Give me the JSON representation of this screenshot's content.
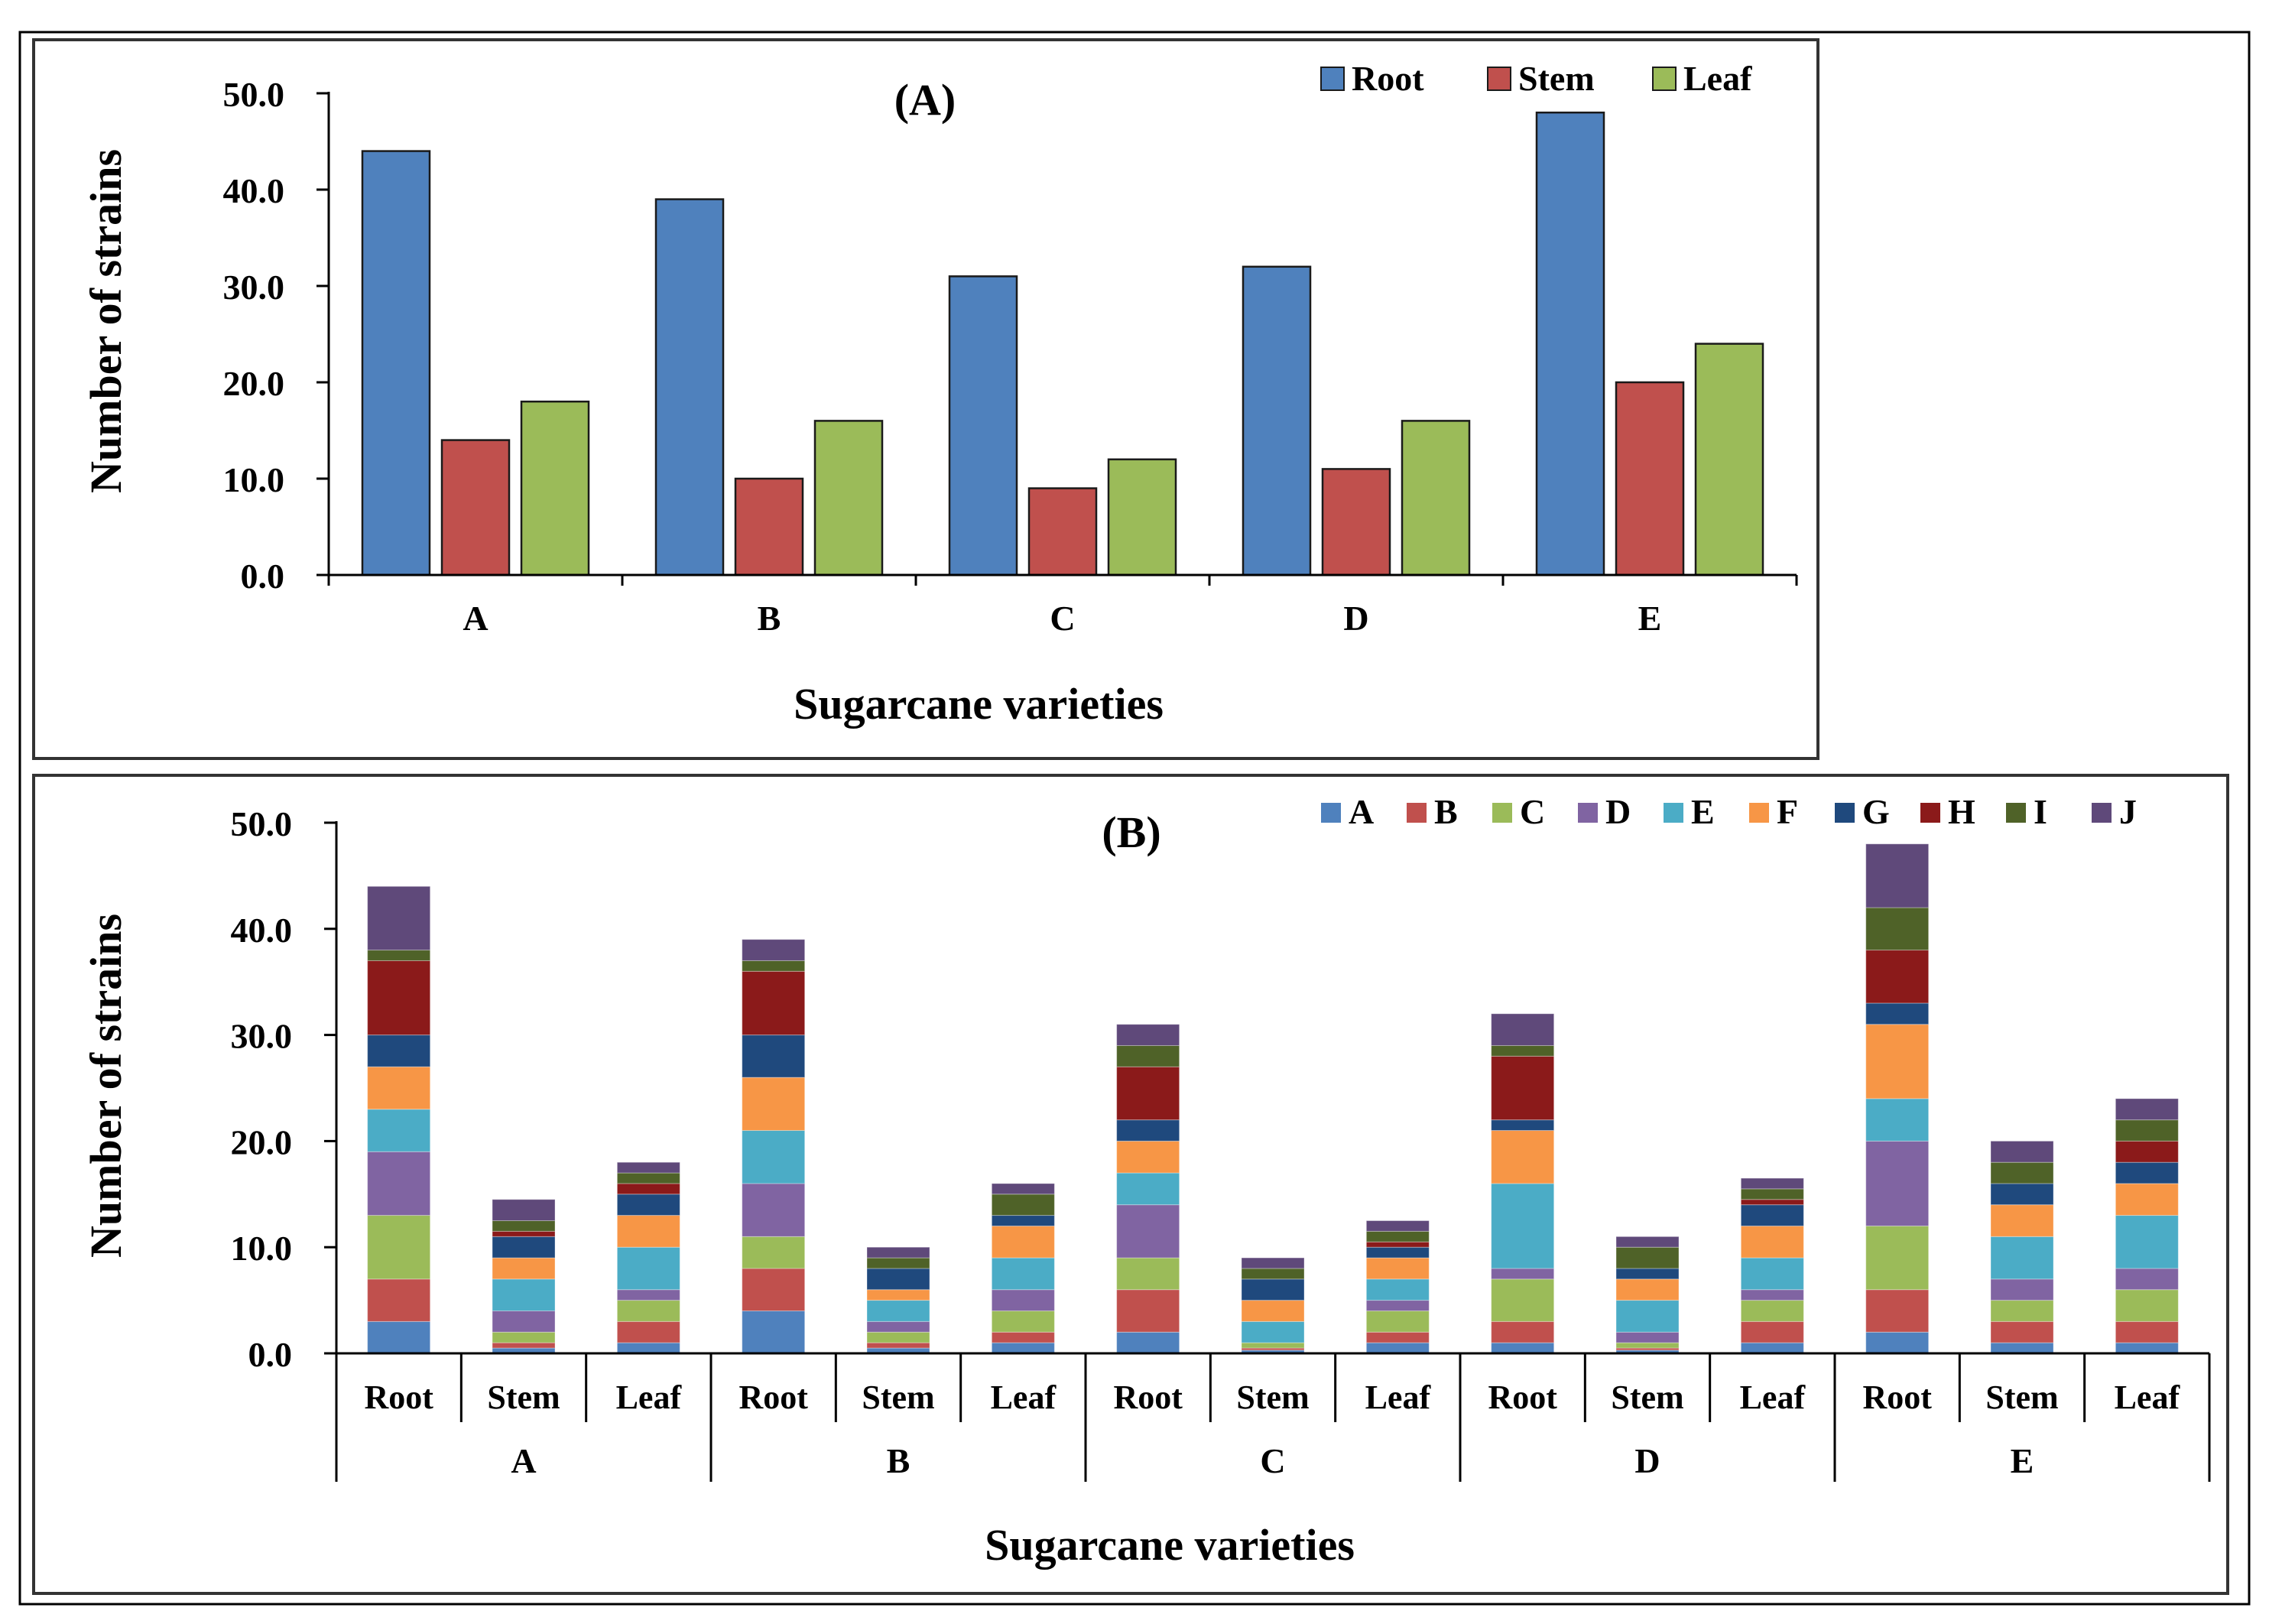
{
  "chart_data": [
    {
      "type": "bar",
      "title": "(A)",
      "xlabel": "Sugarcane varieties",
      "ylabel": "Number of strains",
      "ylim": [
        0,
        50
      ],
      "yticks": [
        "0.0",
        "10.0",
        "20.0",
        "30.0",
        "40.0",
        "50.0"
      ],
      "categories": [
        "A",
        "B",
        "C",
        "D",
        "E"
      ],
      "legend_position": "top-right",
      "series": [
        {
          "name": "Root",
          "color": "#4F81BD",
          "values": [
            44,
            39,
            31,
            32,
            48
          ]
        },
        {
          "name": "Stem",
          "color": "#C0504D",
          "values": [
            14,
            10,
            9,
            11,
            20
          ]
        },
        {
          "name": "Leaf",
          "color": "#9BBB59",
          "values": [
            18,
            16,
            12,
            16,
            24
          ]
        }
      ]
    },
    {
      "type": "bar",
      "stacked": true,
      "title": "(B)",
      "xlabel": "Sugarcane varieties",
      "ylabel": "Number of strains",
      "ylim": [
        0,
        50
      ],
      "yticks": [
        "0.0",
        "10.0",
        "20.0",
        "30.0",
        "40.0",
        "50.0"
      ],
      "groups": [
        "A",
        "B",
        "C",
        "D",
        "E"
      ],
      "sub_categories": [
        "Root",
        "Stem",
        "Leaf"
      ],
      "legend_position": "top-right",
      "series": [
        {
          "name": "A",
          "color": "#4F81BD",
          "values": [
            3,
            0.5,
            1,
            4,
            0.5,
            1,
            2,
            0.3,
            1,
            1,
            0.3,
            1,
            2,
            1,
            1
          ]
        },
        {
          "name": "B",
          "color": "#C0504D",
          "values": [
            4,
            0.5,
            2,
            4,
            0.5,
            1,
            4,
            0.2,
            1,
            2,
            0.2,
            2,
            4,
            2,
            2
          ]
        },
        {
          "name": "C",
          "color": "#9BBB59",
          "values": [
            6,
            1,
            2,
            3,
            1,
            2,
            3,
            0.5,
            2,
            4,
            0.5,
            2,
            6,
            2,
            3
          ]
        },
        {
          "name": "D",
          "color": "#8064A2",
          "values": [
            6,
            2,
            1,
            5,
            1,
            2,
            5,
            0,
            1,
            1,
            1,
            1,
            8,
            2,
            2
          ]
        },
        {
          "name": "E",
          "color": "#4BACC6",
          "values": [
            4,
            3,
            4,
            5,
            2,
            3,
            3,
            2,
            2,
            8,
            3,
            3,
            4,
            4,
            5
          ]
        },
        {
          "name": "F",
          "color": "#F79646",
          "values": [
            4,
            2,
            3,
            5,
            1,
            3,
            3,
            2,
            2,
            5,
            2,
            3,
            7,
            3,
            3
          ]
        },
        {
          "name": "G",
          "color": "#1F497D",
          "values": [
            3,
            2,
            2,
            4,
            2,
            1,
            2,
            2,
            1,
            1,
            1,
            2,
            2,
            2,
            2
          ]
        },
        {
          "name": "H",
          "color": "#8B1A1A",
          "values": [
            7,
            0.5,
            1,
            6,
            0,
            0,
            5,
            0,
            0.5,
            6,
            0,
            0.5,
            5,
            0,
            2
          ]
        },
        {
          "name": "I",
          "color": "#4F6228",
          "values": [
            1,
            1,
            1,
            1,
            1,
            2,
            2,
            1,
            1,
            1,
            2,
            1,
            4,
            2,
            2
          ]
        },
        {
          "name": "J",
          "color": "#5F497A",
          "values": [
            6,
            2,
            1,
            2,
            1,
            1,
            2,
            1,
            1,
            3,
            1,
            1,
            6,
            2,
            2
          ]
        }
      ]
    }
  ]
}
